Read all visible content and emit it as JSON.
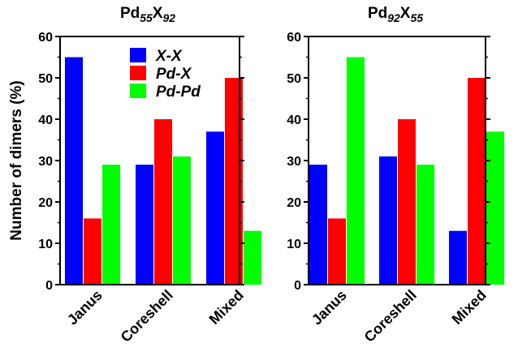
{
  "chart_data": [
    {
      "type": "bar",
      "title_base": "Pd",
      "title_sub1": "55",
      "title_mid": "X",
      "title_sub2": "92",
      "ylabel": "Number of dimers (%)",
      "xlabel": "",
      "ylim": [
        0,
        60
      ],
      "yticks": [
        0,
        10,
        20,
        30,
        40,
        50,
        60
      ],
      "categories": [
        "Janus",
        "Coreshell",
        "Mixed"
      ],
      "legend": "top-center",
      "grid": false,
      "series": [
        {
          "name": "X-X",
          "color": "#0000ff",
          "values": [
            55,
            29,
            37
          ]
        },
        {
          "name": "Pd-X",
          "color": "#ff0000",
          "values": [
            16,
            40,
            50
          ]
        },
        {
          "name": "Pd-Pd",
          "color": "#00ff00",
          "values": [
            29,
            31,
            13
          ]
        }
      ]
    },
    {
      "type": "bar",
      "title_base": "Pd",
      "title_sub1": "92",
      "title_mid": "X",
      "title_sub2": "55",
      "ylabel": "",
      "xlabel": "",
      "ylim": [
        0,
        60
      ],
      "yticks": [
        0,
        10,
        20,
        30,
        40,
        50,
        60
      ],
      "categories": [
        "Janus",
        "Coreshell",
        "Mixed"
      ],
      "legend": "none",
      "grid": false,
      "series": [
        {
          "name": "X-X",
          "color": "#0000ff",
          "values": [
            29,
            31,
            13
          ]
        },
        {
          "name": "Pd-X",
          "color": "#ff0000",
          "values": [
            16,
            40,
            50
          ]
        },
        {
          "name": "Pd-Pd",
          "color": "#00ff00",
          "values": [
            55,
            29,
            37
          ]
        }
      ]
    }
  ]
}
